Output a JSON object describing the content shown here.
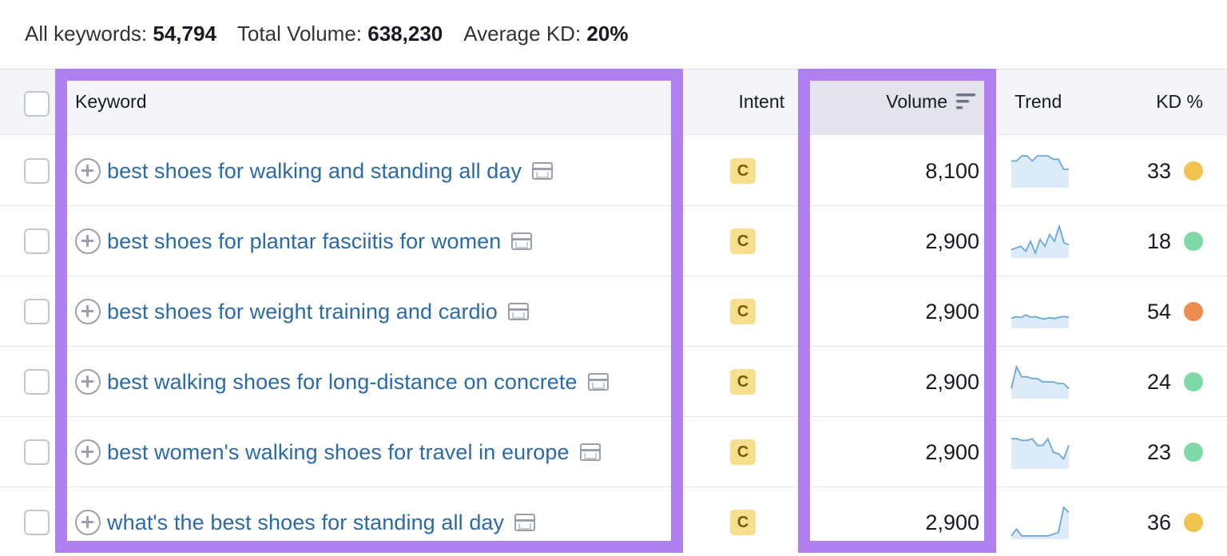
{
  "summary": {
    "all_keywords_label": "All keywords:",
    "all_keywords_value": "54,794",
    "total_volume_label": "Total Volume:",
    "total_volume_value": "638,230",
    "average_kd_label": "Average KD:",
    "average_kd_value": "20%"
  },
  "columns": {
    "keyword": "Keyword",
    "intent": "Intent",
    "volume": "Volume",
    "trend": "Trend",
    "kd": "KD %"
  },
  "rows": [
    {
      "keyword": "best shoes for walking and standing all day",
      "intent": "C",
      "volume": "8,100",
      "kd": "33",
      "kd_color": "#f2c34e",
      "trend": [
        0.8,
        0.8,
        0.95,
        0.95,
        0.8,
        0.95,
        0.95,
        0.95,
        0.85,
        0.85,
        0.55,
        0.55
      ]
    },
    {
      "keyword": "best shoes for plantar fasciitis for women",
      "intent": "C",
      "volume": "2,900",
      "kd": "18",
      "kd_color": "#7fd9a6",
      "trend": [
        0.25,
        0.3,
        0.35,
        0.2,
        0.5,
        0.15,
        0.55,
        0.35,
        0.7,
        0.5,
        0.95,
        0.45,
        0.4
      ]
    },
    {
      "keyword": "best shoes for weight training and cardio",
      "intent": "C",
      "volume": "2,900",
      "kd": "54",
      "kd_color": "#ea8e4f",
      "trend": [
        0.3,
        0.35,
        0.32,
        0.4,
        0.33,
        0.35,
        0.3,
        0.28,
        0.32,
        0.29,
        0.33,
        0.35,
        0.33
      ]
    },
    {
      "keyword": "best walking shoes for long-distance on concrete",
      "intent": "C",
      "volume": "2,900",
      "kd": "24",
      "kd_color": "#7fd9a6",
      "trend": [
        0.3,
        0.95,
        0.65,
        0.65,
        0.6,
        0.6,
        0.5,
        0.5,
        0.5,
        0.45,
        0.45,
        0.3
      ]
    },
    {
      "keyword": "best women's walking shoes for travel in europe",
      "intent": "C",
      "volume": "2,900",
      "kd": "23",
      "kd_color": "#7fd9a6",
      "trend": [
        0.9,
        0.9,
        0.85,
        0.85,
        0.9,
        0.7,
        0.7,
        0.9,
        0.5,
        0.45,
        0.3,
        0.7
      ]
    },
    {
      "keyword": "what's the best shoes for standing all day",
      "intent": "C",
      "volume": "2,900",
      "kd": "36",
      "kd_color": "#f2c34e",
      "trend": [
        0.1,
        0.3,
        0.1,
        0.1,
        0.1,
        0.1,
        0.1,
        0.1,
        0.15,
        0.2,
        0.95,
        0.8
      ]
    }
  ],
  "colors": {
    "link": "#2a6aa8",
    "highlight": "#b080f0",
    "header_bg": "#f4f5f9",
    "sorted_column_bg": "#e2e3ec",
    "intent_badge": "#f8df8e",
    "trend_line": "#6aa8d8",
    "trend_fill": "#dcebf8"
  },
  "icons": {
    "add_keyword": "plus-circle-icon",
    "serp_features": "serp-window-icon",
    "sort": "sort-descending-icon"
  }
}
